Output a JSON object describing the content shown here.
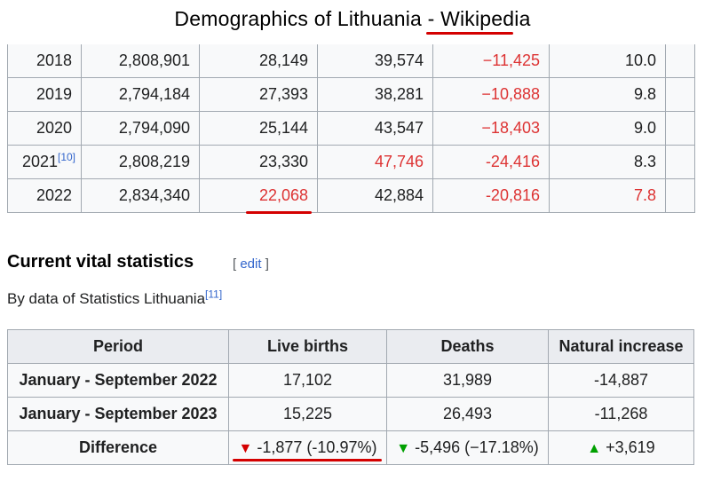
{
  "window": {
    "title": "Demographics of Lithuania - Wikipedia"
  },
  "population_table": {
    "rows": [
      {
        "year": "2018",
        "ref": "",
        "population": "2,808,901",
        "live_births": "28,149",
        "deaths": "39,574",
        "natural_change": "−11,425",
        "rate": "10.0"
      },
      {
        "year": "2019",
        "ref": "",
        "population": "2,794,184",
        "live_births": "27,393",
        "deaths": "38,281",
        "natural_change": "−10,888",
        "rate": "9.8"
      },
      {
        "year": "2020",
        "ref": "",
        "population": "2,794,090",
        "live_births": "25,144",
        "deaths": "43,547",
        "natural_change": "−18,403",
        "rate": "9.0"
      },
      {
        "year": "2021",
        "ref": "[10]",
        "population": "2,808,219",
        "live_births": "23,330",
        "deaths": "47,746",
        "natural_change": "-24,416",
        "rate": "8.3"
      },
      {
        "year": "2022",
        "ref": "",
        "population": "2,834,340",
        "live_births": "22,068",
        "deaths": "42,884",
        "natural_change": "-20,816",
        "rate": "7.8"
      }
    ]
  },
  "section": {
    "heading": "Current vital statistics",
    "edit_open": "[ ",
    "edit_label": "edit",
    "edit_close": " ]",
    "byline": "By data of Statistics Lithuania",
    "byline_ref": "[11]"
  },
  "vital_table": {
    "headers": [
      "Period",
      "Live births",
      "Deaths",
      "Natural increase"
    ],
    "rows": [
      {
        "period": "January - September 2022",
        "live_births": "17,102",
        "deaths": "31,989",
        "natural_increase": "-14,887"
      },
      {
        "period": "January - September 2023",
        "live_births": "15,225",
        "deaths": "26,493",
        "natural_increase": "-11,268"
      }
    ],
    "difference": {
      "label": "Difference",
      "live_births": "-1,877 (-10.97%)",
      "deaths": "-5,496 (−17.18%)",
      "natural_increase": "+3,619"
    }
  },
  "colors": {
    "negative": "#dd3333",
    "annotation_underline": "#d40000",
    "decrease_red": "#d40000",
    "green": "#00a000",
    "link": "#3366cc"
  },
  "icons": {
    "decrease": "triangle-down",
    "increase": "triangle-up"
  }
}
